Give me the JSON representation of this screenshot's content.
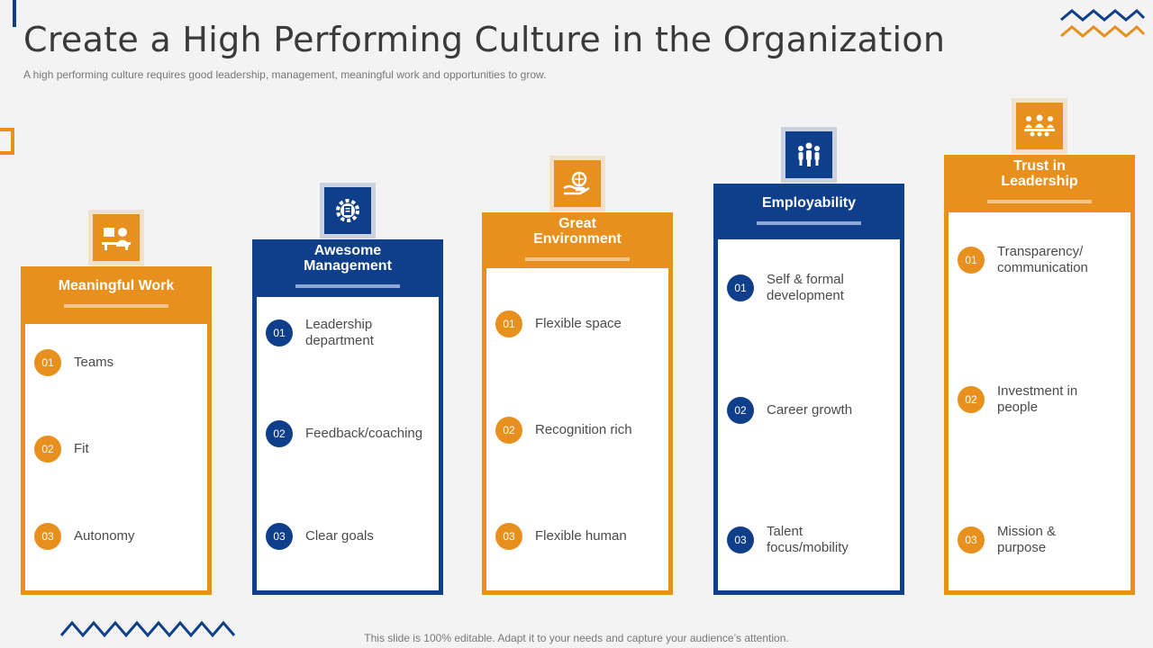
{
  "title": "Create a High Performing Culture in the Organization",
  "subtitle": "A high performing culture requires good leadership, management, meaningful work and opportunities to grow.",
  "footer": "This slide is 100% editable. Adapt it to your needs and capture your audience’s attention.",
  "colors": {
    "orange": "#e8901d",
    "blue": "#0f3f8a"
  },
  "columns": [
    {
      "id": "meaningful-work",
      "color": "orange",
      "icon": "work-desk-icon",
      "title": "Meaningful Work",
      "items": [
        {
          "num": "01",
          "text": "Teams"
        },
        {
          "num": "02",
          "text": "Fit"
        },
        {
          "num": "03",
          "text": "Autonomy"
        }
      ]
    },
    {
      "id": "awesome-management",
      "color": "blue",
      "icon": "gear-document-icon",
      "title": "Awesome\nManagement",
      "items": [
        {
          "num": "01",
          "text": "Leadership\ndepartment"
        },
        {
          "num": "02",
          "text": "Feedback/coaching"
        },
        {
          "num": "03",
          "text": "Clear goals"
        }
      ]
    },
    {
      "id": "great-environment",
      "color": "orange",
      "icon": "hand-globe-icon",
      "title": "Great\nEnvironment",
      "items": [
        {
          "num": "01",
          "text": "Flexible space"
        },
        {
          "num": "02",
          "text": "Recognition rich"
        },
        {
          "num": "03",
          "text": "Flexible human"
        }
      ]
    },
    {
      "id": "employability",
      "color": "blue",
      "icon": "people-group-icon",
      "title": "Employability",
      "items": [
        {
          "num": "01",
          "text": "Self & formal\ndevelopment"
        },
        {
          "num": "02",
          "text": "Career growth"
        },
        {
          "num": "03",
          "text": "Talent\nfocus/mobility"
        }
      ]
    },
    {
      "id": "trust-in-leadership",
      "color": "orange",
      "icon": "team-meeting-icon",
      "title": "Trust in\nLeadership",
      "items": [
        {
          "num": "01",
          "text": "Transparency/\ncommunication"
        },
        {
          "num": "02",
          "text": "Investment in\npeople"
        },
        {
          "num": "03",
          "text": "Mission &\npurpose"
        }
      ]
    }
  ]
}
